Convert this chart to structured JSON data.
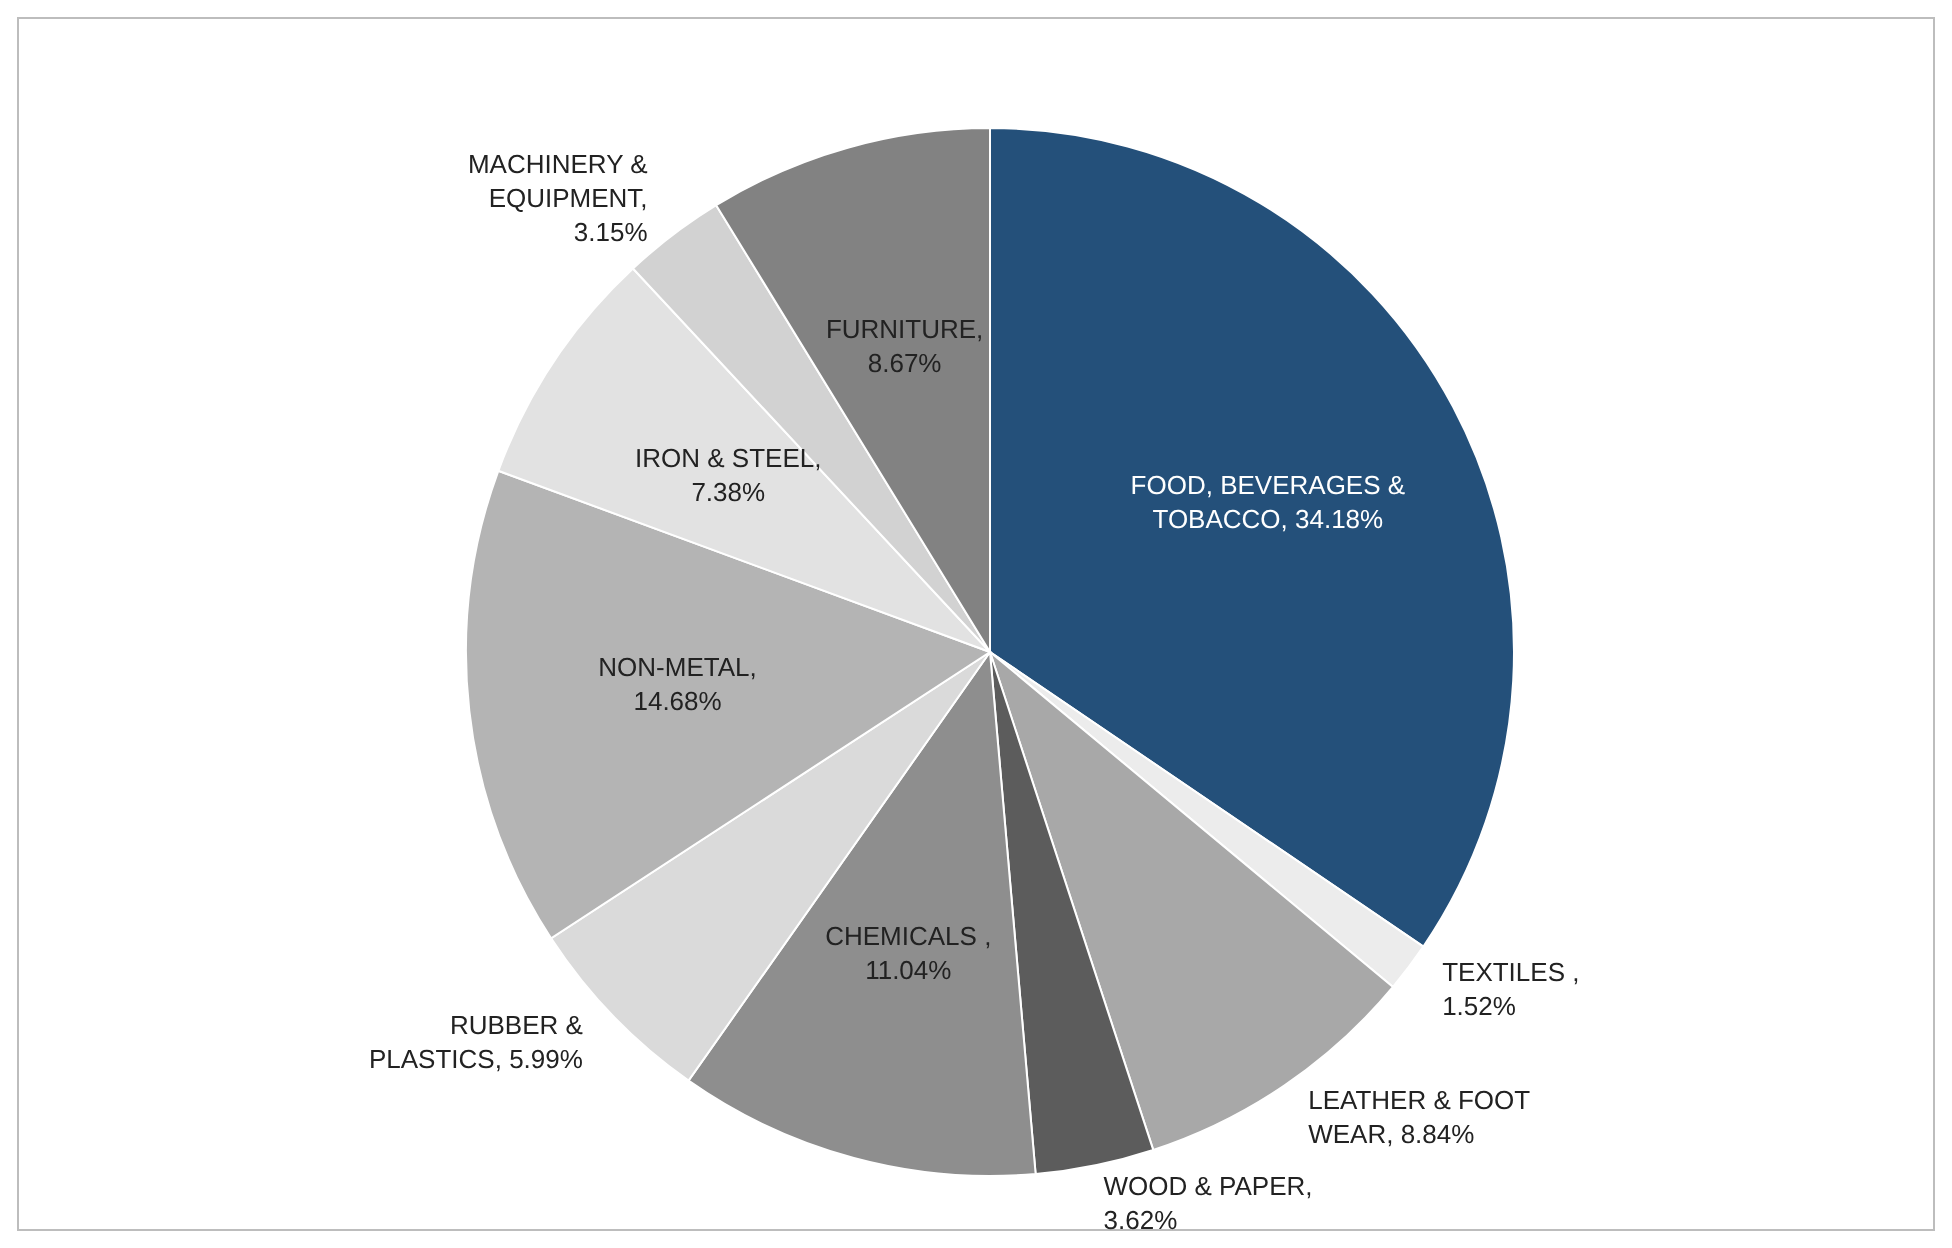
{
  "chart_data": {
    "type": "pie",
    "categories": [
      "FOOD, BEVERAGES & TOBACCO",
      "TEXTILES ",
      "LEATHER & FOOT WEAR",
      "WOOD & PAPER",
      "CHEMICALS ",
      "RUBBER & PLASTICS",
      "NON-METAL",
      "IRON & STEEL",
      "MACHINERY & EQUIPMENT",
      "FURNITURE"
    ],
    "values": [
      34.18,
      1.52,
      8.84,
      3.62,
      11.04,
      5.99,
      14.68,
      7.38,
      3.15,
      8.67
    ],
    "value_labels": [
      ", 34.18%",
      ", 1.52%",
      ", 8.84%",
      ", 3.62%",
      ", 11.04%",
      ", 5.99%",
      ", 14.68%",
      ", 7.38%",
      ", 3.15%",
      ", 8.67%"
    ],
    "colors": [
      "#24507a",
      "#ececec",
      "#a8a8a8",
      "#5c5c5c",
      "#8e8e8e",
      "#dadada",
      "#b4b4b4",
      "#e2e2e2",
      "#d2d2d2",
      "#828282"
    ]
  }
}
